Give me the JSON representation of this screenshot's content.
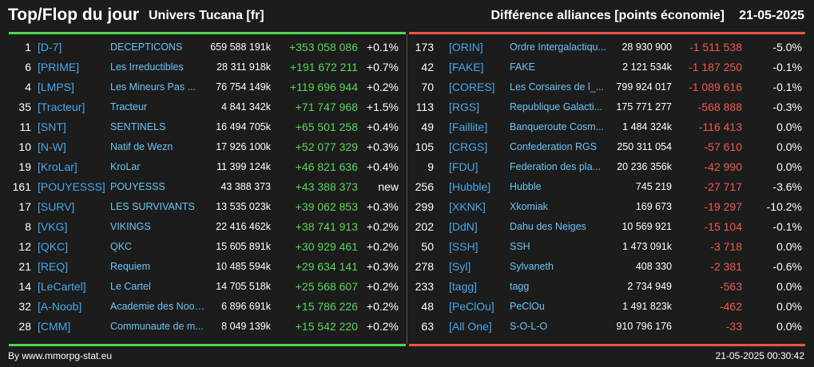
{
  "header": {
    "title": "Top/Flop du jour",
    "subtitle": "Univers Tucana [fr]",
    "right_title": "Différence alliances [points économie]",
    "date": "21-05-2025"
  },
  "colors": {
    "top": "#4dd84d",
    "flop": "#e8534a",
    "tag": "#4aa8ee"
  },
  "top": [
    {
      "rank": "1",
      "tag": "[D-7]",
      "name": "DECEPTICONS",
      "points": "659 588 191k",
      "diff": "+353 058 086",
      "pct": "+0.1%"
    },
    {
      "rank": "6",
      "tag": "[PRIME]",
      "name": "Les Irreductibles",
      "points": "28 311 918k",
      "diff": "+191 672 211",
      "pct": "+0.7%"
    },
    {
      "rank": "4",
      "tag": "[LMPS]",
      "name": "Les Mineurs Pas ...",
      "points": "76 754 149k",
      "diff": "+119 696 944",
      "pct": "+0.2%"
    },
    {
      "rank": "35",
      "tag": "[Tracteur]",
      "name": "Tracteur",
      "points": "4 841 342k",
      "diff": "+71 747 968",
      "pct": "+1.5%"
    },
    {
      "rank": "11",
      "tag": "[SNT]",
      "name": "SENTINELS",
      "points": "16 494 705k",
      "diff": "+65 501 258",
      "pct": "+0.4%"
    },
    {
      "rank": "10",
      "tag": "[N-W]",
      "name": "Natif de Wezn",
      "points": "17 926 100k",
      "diff": "+52 077 329",
      "pct": "+0.3%"
    },
    {
      "rank": "19",
      "tag": "[KroLar]",
      "name": "KroLar",
      "points": "11 399 124k",
      "diff": "+46 821 636",
      "pct": "+0.4%"
    },
    {
      "rank": "161",
      "tag": "[POUYESSS]",
      "name": "POUYESSS",
      "points": "43 388 373",
      "diff": "+43 388 373",
      "pct": "new"
    },
    {
      "rank": "17",
      "tag": "[SURV]",
      "name": "LES SURVIVANTS",
      "points": "13 535 023k",
      "diff": "+39 062 853",
      "pct": "+0.3%"
    },
    {
      "rank": "8",
      "tag": "[VKG]",
      "name": "VIKINGS",
      "points": "22 416 462k",
      "diff": "+38 741 913",
      "pct": "+0.2%"
    },
    {
      "rank": "12",
      "tag": "[QKC]",
      "name": "QKC",
      "points": "15 605 891k",
      "diff": "+30 929 461",
      "pct": "+0.2%"
    },
    {
      "rank": "21",
      "tag": "[REQ]",
      "name": "Requiem",
      "points": "10 485 594k",
      "diff": "+29 634 141",
      "pct": "+0.3%"
    },
    {
      "rank": "14",
      "tag": "[LeCartel]",
      "name": "Le Cartel",
      "points": "14 705 518k",
      "diff": "+25 568 607",
      "pct": "+0.2%"
    },
    {
      "rank": "32",
      "tag": "[A-Noob]",
      "name": "Academie des Noob...",
      "points": "6 896 691k",
      "diff": "+15 786 226",
      "pct": "+0.2%"
    },
    {
      "rank": "28",
      "tag": "[CMM]",
      "name": "Communaute de m...",
      "points": "8 049 139k",
      "diff": "+15 542 220",
      "pct": "+0.2%"
    }
  ],
  "flop": [
    {
      "rank": "173",
      "tag": "[ORIN]",
      "name": "Ordre Intergalactiqu...",
      "points": "28 930 900",
      "diff": "-1 511 538",
      "pct": "-5.0%"
    },
    {
      "rank": "42",
      "tag": "[FAKE]",
      "name": "FAKE",
      "points": "2 121 534k",
      "diff": "-1 187 250",
      "pct": "-0.1%"
    },
    {
      "rank": "70",
      "tag": "[CORES]",
      "name": "Les Corsaires de l_...",
      "points": "799 924 017",
      "diff": "-1 089 616",
      "pct": "-0.1%"
    },
    {
      "rank": "113",
      "tag": "[RGS]",
      "name": "Republique Galacti...",
      "points": "175 771 277",
      "diff": "-568 888",
      "pct": "-0.3%"
    },
    {
      "rank": "49",
      "tag": "[Faillite]",
      "name": "Banqueroute Cosm...",
      "points": "1 484 324k",
      "diff": "-116 413",
      "pct": "0.0%"
    },
    {
      "rank": "105",
      "tag": "[CRGS]",
      "name": "Confederation RGS",
      "points": "250 311 054",
      "diff": "-57 610",
      "pct": "0.0%"
    },
    {
      "rank": "9",
      "tag": "[FDU]",
      "name": "Federation des pla...",
      "points": "20 236 356k",
      "diff": "-42 990",
      "pct": "0.0%"
    },
    {
      "rank": "256",
      "tag": "[Hubble]",
      "name": "Hubble",
      "points": "745 219",
      "diff": "-27 717",
      "pct": "-3.6%"
    },
    {
      "rank": "299",
      "tag": "[XKNK]",
      "name": "Xkomiak",
      "points": "169 673",
      "diff": "-19 297",
      "pct": "-10.2%"
    },
    {
      "rank": "202",
      "tag": "[DdN]",
      "name": "Dahu des Neiges",
      "points": "10 569 921",
      "diff": "-15 104",
      "pct": "-0.1%"
    },
    {
      "rank": "50",
      "tag": "[SSH]",
      "name": "SSH",
      "points": "1 473 091k",
      "diff": "-3 718",
      "pct": "0.0%"
    },
    {
      "rank": "278",
      "tag": "[Syl]",
      "name": "Sylvaneth",
      "points": "408 330",
      "diff": "-2 381",
      "pct": "-0.6%"
    },
    {
      "rank": "233",
      "tag": "[tagg]",
      "name": "tagg",
      "points": "2 734 949",
      "diff": "-563",
      "pct": "0.0%"
    },
    {
      "rank": "48",
      "tag": "[PeClOu]",
      "name": "PeClOu",
      "points": "1 491 823k",
      "diff": "-462",
      "pct": "0.0%"
    },
    {
      "rank": "63",
      "tag": "[All One]",
      "name": "S-O-L-O",
      "points": "910 796 176",
      "diff": "-33",
      "pct": "0.0%"
    }
  ],
  "footer": {
    "source": "By www.mmorpg-stat.eu",
    "timestamp": "21-05-2025 00:30:42"
  }
}
